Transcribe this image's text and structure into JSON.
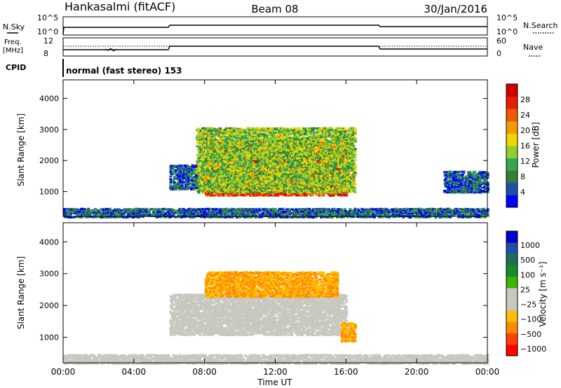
{
  "header": {
    "station": "Hankasalmi (fitACF)",
    "beam": "Beam 08",
    "date": "30/Jan/2016"
  },
  "status_panel": {
    "nsky_label": "N.Sky",
    "nsearch_label": "N.Search",
    "nsky_ticks": [
      "10^5",
      "10^0"
    ],
    "nsearch_ticks": [
      "10^5",
      "10^0"
    ],
    "freq_label_line1": "Freq.",
    "freq_label_line2": "[MHz]",
    "freq_ticks": [
      "12",
      "8"
    ],
    "nave_label": "Nave",
    "nave_ticks": [
      "60",
      "0"
    ],
    "cpid_label": "CPID",
    "cpid_text": "normal (fast stereo) 153"
  },
  "colors": {
    "power_scale": [
      "#0000ff",
      "#1f4fa8",
      "#2e7f3c",
      "#37a550",
      "#8fcf2f",
      "#f2d400",
      "#f59a00",
      "#f05a00",
      "#e81d00",
      "#d00000"
    ],
    "velocity_scale": [
      "#ff0000",
      "#ff4000",
      "#ff8c00",
      "#ffbe00",
      "#c8c8c0",
      "#c8c8c0",
      "#3cb400",
      "#148c28",
      "#1f6e5a",
      "#1f4fa8",
      "#0000d0"
    ],
    "ground_scatter": "#c8c8c0"
  },
  "chart_data": [
    {
      "type": "heatmap",
      "panel": "power",
      "ylabel": "Slant Range [km]",
      "ylim": [
        200,
        4600
      ],
      "y_ticks": [
        "1000",
        "2000",
        "3000",
        "4000"
      ],
      "colorbar_label": "Power [dB]",
      "colorbar_ticks": [
        "4",
        "8",
        "12",
        "16",
        "20",
        "24",
        "28"
      ],
      "colorbar_range": [
        0,
        32
      ],
      "regions": [
        {
          "t_start": 8.0,
          "t_end": 16.0,
          "range_min": 900,
          "range_max": 2700,
          "power": 26
        },
        {
          "t_start": 7.5,
          "t_end": 16.5,
          "range_min": 1000,
          "range_max": 3100,
          "power": 14
        },
        {
          "t_start": 6.0,
          "t_end": 7.5,
          "range_min": 1100,
          "range_max": 1900,
          "power": 6
        },
        {
          "t_start": 0.0,
          "t_end": 24.0,
          "range_min": 200,
          "range_max": 500,
          "power": 6
        },
        {
          "t_start": 21.5,
          "t_end": 24.0,
          "range_min": 1000,
          "range_max": 1700,
          "power": 6
        }
      ]
    },
    {
      "type": "heatmap",
      "panel": "velocity",
      "ylabel": "Slant Range [km]",
      "ylim": [
        200,
        4600
      ],
      "y_ticks": [
        "1000",
        "2000",
        "3000",
        "4000"
      ],
      "colorbar_label": "Velocity [m s⁻¹]",
      "colorbar_ticks": [
        "1000",
        "500",
        "100",
        "25",
        "−25",
        "−100",
        "−500",
        "−1000"
      ],
      "regions": [
        {
          "t_start": 6.0,
          "t_end": 16.0,
          "range_min": 1100,
          "range_max": 2400,
          "velocity": 0
        },
        {
          "t_start": 8.0,
          "t_end": 15.5,
          "range_min": 2300,
          "range_max": 3100,
          "velocity": -150
        },
        {
          "t_start": 15.7,
          "t_end": 16.5,
          "range_min": 900,
          "range_max": 1500,
          "velocity": -150
        },
        {
          "t_start": 0.0,
          "t_end": 24.0,
          "range_min": 200,
          "range_max": 500,
          "velocity": 0
        }
      ]
    }
  ],
  "time_axis": {
    "xlabel": "Time UT",
    "ticks": [
      "00:00",
      "04:00",
      "08:00",
      "12:00",
      "16:00",
      "20:00",
      "00:00"
    ],
    "xlim_hours": [
      0,
      24
    ]
  }
}
